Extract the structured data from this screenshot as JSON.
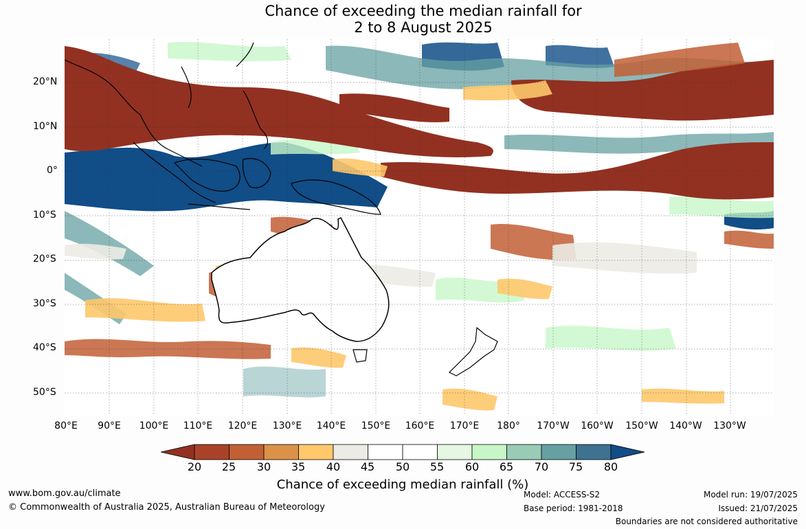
{
  "title": {
    "line1": "Chance of exceeding the median rainfall for",
    "line2": "2 to 8 August 2025"
  },
  "lat_labels": [
    "20°N",
    "10°N",
    "0°",
    "10°S",
    "20°S",
    "30°S",
    "40°S",
    "50°S"
  ],
  "lon_labels": [
    "80°E",
    "90°E",
    "100°E",
    "110°E",
    "120°E",
    "130°E",
    "140°E",
    "150°E",
    "160°E",
    "170°E",
    "180°",
    "170°W",
    "160°W",
    "150°W",
    "140°W",
    "130°W"
  ],
  "colorbar": {
    "ticks": [
      "20",
      "25",
      "30",
      "35",
      "40",
      "45",
      "50",
      "55",
      "60",
      "65",
      "70",
      "75",
      "80"
    ],
    "colors": [
      "#923121",
      "#a8432a",
      "#c25f35",
      "#dc9148",
      "#fec86b",
      "#ecebe6",
      "#ffffff",
      "#ffffff",
      "#e6f7e4",
      "#c7f7c8",
      "#98ccb6",
      "#66a0a2",
      "#3e7291",
      "#114d87"
    ],
    "label": "Chance of exceeding median rainfall (%)"
  },
  "footer": {
    "website": "www.bom.gov.au/climate",
    "copyright": "© Commonwealth of Australia 2025, Australian Bureau of Meteorology",
    "model": "Model: ACCESS-S2",
    "base_period": "Base period: 1981-2018",
    "model_run": "Model run: 19/07/2025",
    "issued": "Issued: 21/07/2025",
    "disclaimer": "Boundaries are not considered authoritative"
  }
}
